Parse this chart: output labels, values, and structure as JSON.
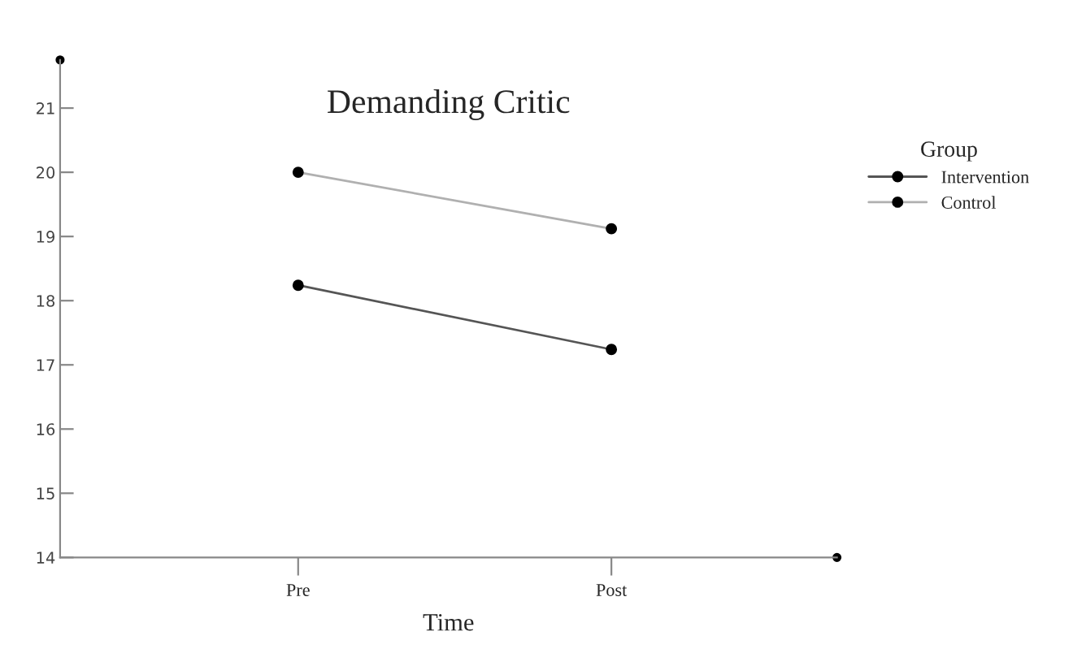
{
  "chart_data": {
    "type": "line",
    "title": "Demanding Critic",
    "xlabel": "Time",
    "legend_title": "Group",
    "categories": [
      "Pre",
      "Post"
    ],
    "series": [
      {
        "name": "Intervention",
        "color": "#555555",
        "values": [
          18.24,
          17.24
        ]
      },
      {
        "name": "Control",
        "color": "#b0b0b0",
        "values": [
          20.0,
          19.12
        ]
      }
    ],
    "ylim": [
      14,
      21.75
    ],
    "yticks": [
      14,
      15,
      16,
      17,
      18,
      19,
      20,
      21
    ],
    "grid": false,
    "legend": "top right",
    "marker": "circle",
    "line_style": "solid"
  }
}
